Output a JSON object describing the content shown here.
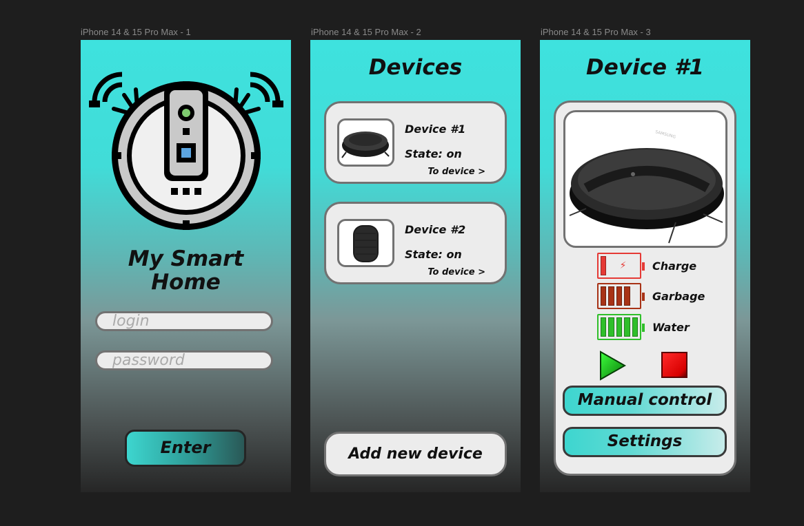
{
  "frames": [
    {
      "label": "iPhone 14 & 15 Pro Max - 1"
    },
    {
      "label": "iPhone 14 & 15 Pro Max - 2"
    },
    {
      "label": "iPhone 14 & 15 Pro Max - 3"
    }
  ],
  "login": {
    "title_line1": "My Smart",
    "title_line2": "Home",
    "login_placeholder": "login",
    "password_placeholder": "password",
    "enter_label": "Enter"
  },
  "devices": {
    "title": "Devices",
    "items": [
      {
        "name": "Device #1",
        "state": "State: on",
        "link": "To device >",
        "icon": "robot-vacuum-icon"
      },
      {
        "name": "Device #2",
        "state": "State: on",
        "link": "To device >",
        "icon": "smart-speaker-icon"
      }
    ],
    "add_label": "Add new device"
  },
  "device_detail": {
    "title": "Device #1",
    "brand": "SAMSUNG",
    "indicators": [
      {
        "label": "Charge",
        "level_cells": 1,
        "total_cells": 5,
        "color": "#e53935",
        "icon": "battery-low-icon"
      },
      {
        "label": "Garbage",
        "level_cells": 4,
        "total_cells": 5,
        "color": "#a83216",
        "icon": "battery-icon"
      },
      {
        "label": "Water",
        "level_cells": 5,
        "total_cells": 5,
        "color": "#2fbf2a",
        "icon": "battery-full-icon"
      }
    ],
    "play_icon": "play-icon",
    "stop_icon": "stop-icon",
    "manual_label": "Manual control",
    "settings_label": "Settings"
  },
  "colors": {
    "background": "#1e1e1e",
    "accent": "#3ee2de",
    "card": "#ececec",
    "border": "#727272"
  }
}
